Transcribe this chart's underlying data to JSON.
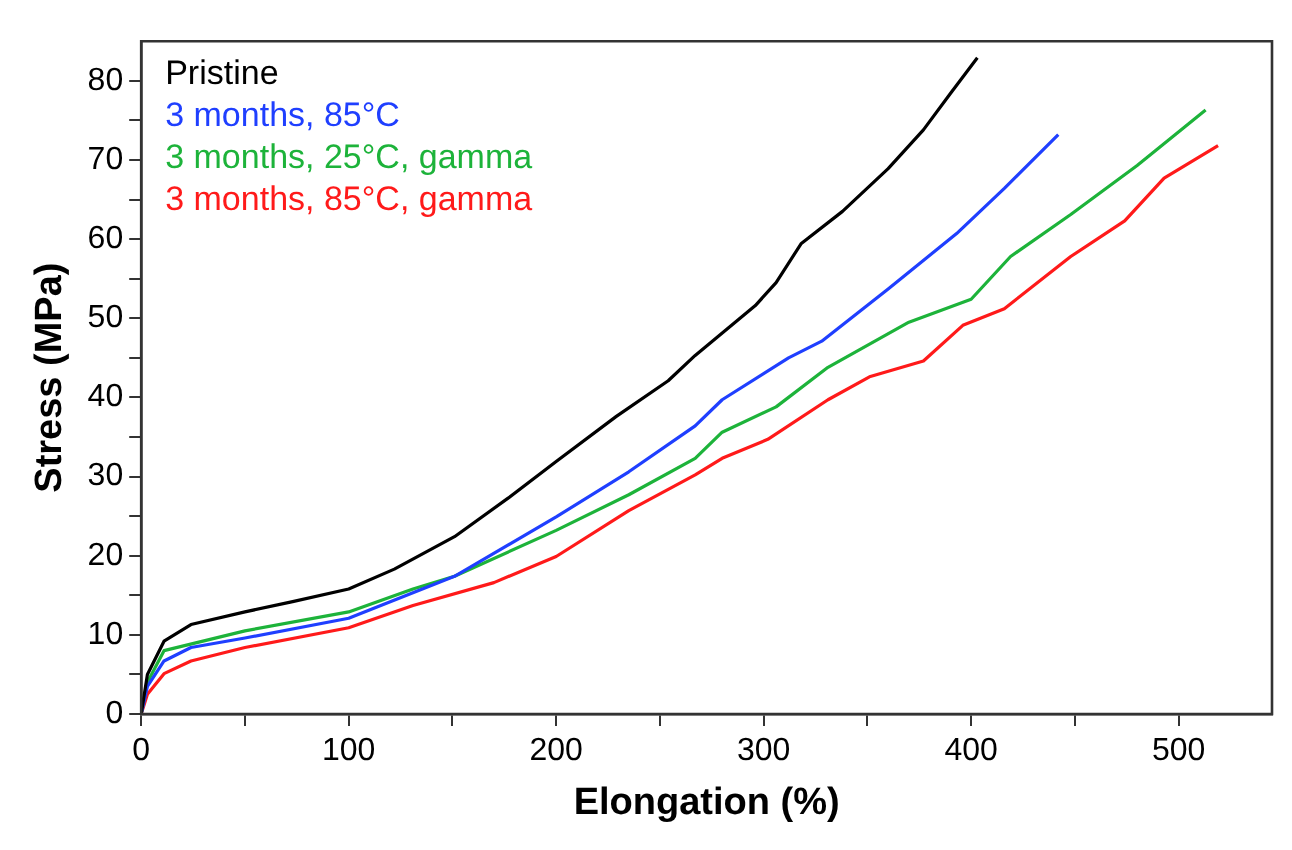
{
  "chart_data": {
    "type": "line",
    "xlabel": "Elongation (%)",
    "ylabel": "Stress (MPa)",
    "xlim": [
      0,
      545
    ],
    "ylim": [
      0,
      85
    ],
    "xticks": [
      0,
      {
        "value": 50,
        "label": null
      },
      100,
      {
        "value": 150,
        "label": null
      },
      200,
      {
        "value": 250,
        "label": null
      },
      300,
      {
        "value": 350,
        "label": null
      },
      400,
      {
        "value": 450,
        "label": null
      },
      500
    ],
    "yticks": [
      0,
      {
        "value": 5,
        "label": null
      },
      10,
      {
        "value": 15,
        "label": null
      },
      20,
      {
        "value": 25,
        "label": null
      },
      30,
      {
        "value": 35,
        "label": null
      },
      40,
      {
        "value": 45,
        "label": null
      },
      50,
      {
        "value": 55,
        "label": null
      },
      60,
      {
        "value": 65,
        "label": null
      },
      70,
      {
        "value": 75,
        "label": null
      },
      80
    ],
    "grid": false,
    "legend": "top left",
    "marker": "none",
    "line_style": "solid",
    "series": [
      {
        "name": "Pristine",
        "color": "#000000",
        "x": [
          0,
          3,
          11,
          24,
          50,
          73,
          100,
          122,
          151,
          177,
          200,
          229,
          254,
          267,
          296,
          306,
          318,
          338,
          360,
          377,
          390,
          403
        ],
        "values": [
          0,
          5,
          9.2,
          11.3,
          12.9,
          14.2,
          15.8,
          18.3,
          22.4,
          27.3,
          31.9,
          37.6,
          42.1,
          45.3,
          51.6,
          54.5,
          59.4,
          63.5,
          68.9,
          73.8,
          78.4,
          82.9
        ]
      },
      {
        "name": "3 months, 85°C",
        "color": "#1f3fff",
        "x": [
          0,
          3,
          11,
          24,
          50,
          100,
          151,
          200,
          235,
          267,
          280,
          312,
          328,
          360,
          393,
          416,
          442
        ],
        "values": [
          0,
          3.5,
          6.7,
          8.4,
          9.6,
          12.1,
          17.4,
          24.9,
          30.6,
          36.4,
          39.7,
          45,
          47.1,
          53.7,
          60.7,
          66.4,
          73.2
        ]
      },
      {
        "name": "3 months, 25°C, gamma",
        "color": "#1db33a",
        "x": [
          0,
          3,
          11,
          50,
          100,
          131,
          151,
          200,
          235,
          267,
          280,
          306,
          331,
          370,
          400,
          419,
          448,
          480,
          513
        ],
        "values": [
          0,
          4,
          8,
          10.5,
          12.9,
          15.8,
          17.4,
          23.2,
          27.7,
          32.3,
          35.6,
          38.8,
          43.8,
          49.5,
          52.4,
          57.8,
          63.1,
          69.3,
          76.3
        ]
      },
      {
        "name": "3 months, 85°C, gamma",
        "color": "#ff1a1a",
        "x": [
          0,
          3,
          11,
          24,
          50,
          100,
          131,
          170,
          200,
          235,
          267,
          280,
          302,
          331,
          351,
          377,
          396,
          416,
          448,
          474,
          493,
          519
        ],
        "values": [
          0,
          2.5,
          5.1,
          6.7,
          8.4,
          10.9,
          13.7,
          16.6,
          19.9,
          25.7,
          30.2,
          32.3,
          34.7,
          39.7,
          42.6,
          44.6,
          49.1,
          51.2,
          57.8,
          62.3,
          67.7,
          71.8
        ]
      }
    ]
  }
}
